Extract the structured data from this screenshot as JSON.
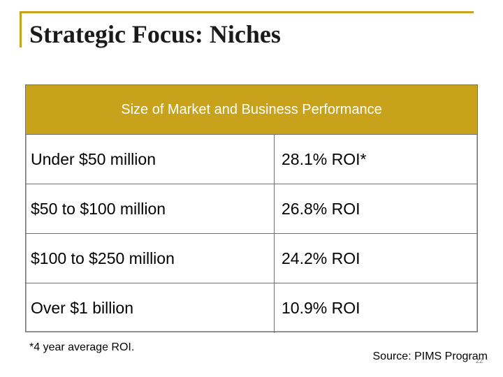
{
  "slide": {
    "title": "Strategic Focus: Niches",
    "table": {
      "header": "Size of Market and Business Performance",
      "rows": [
        {
          "market_size": "Under $50 million",
          "roi": "28.1% ROI*"
        },
        {
          "market_size": "$50 to $100 million",
          "roi": "26.8% ROI"
        },
        {
          "market_size": "$100 to $250 million",
          "roi": "24.2% ROI"
        },
        {
          "market_size": "Over $1 billion",
          "roi": "10.9% ROI"
        }
      ]
    },
    "footnote": "*4 year average ROI.",
    "source": "Source: PIMS Program",
    "page_number": "22",
    "colors": {
      "accent": "#c8a21a",
      "border": "#707070",
      "text": "#000000"
    }
  }
}
